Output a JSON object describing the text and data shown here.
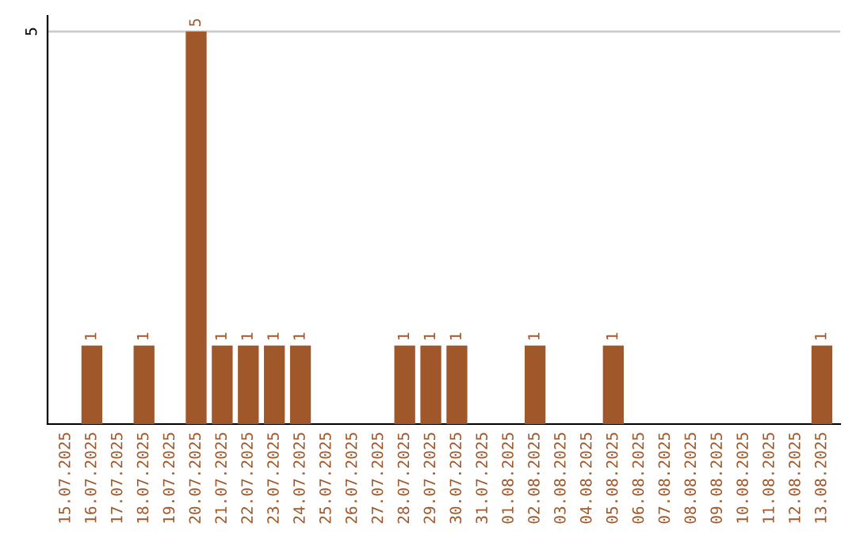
{
  "chart_data": {
    "type": "bar",
    "categories": [
      "15.07.2025",
      "16.07.2025",
      "17.07.2025",
      "18.07.2025",
      "19.07.2025",
      "20.07.2025",
      "21.07.2025",
      "22.07.2025",
      "23.07.2025",
      "24.07.2025",
      "25.07.2025",
      "26.07.2025",
      "27.07.2025",
      "28.07.2025",
      "29.07.2025",
      "30.07.2025",
      "31.07.2025",
      "01.08.2025",
      "02.08.2025",
      "03.08.2025",
      "04.08.2025",
      "05.08.2025",
      "06.08.2025",
      "07.08.2025",
      "08.08.2025",
      "09.08.2025",
      "10.08.2025",
      "11.08.2025",
      "12.08.2025",
      "13.08.2025"
    ],
    "values": [
      0,
      1,
      0,
      1,
      0,
      5,
      1,
      1,
      1,
      1,
      0,
      0,
      0,
      1,
      1,
      1,
      0,
      0,
      1,
      0,
      0,
      1,
      0,
      0,
      0,
      0,
      0,
      0,
      0,
      1
    ],
    "value_labels": [
      null,
      "1",
      null,
      "1",
      null,
      "5",
      "1",
      "1",
      "1",
      "1",
      null,
      null,
      null,
      "1",
      "1",
      "1",
      null,
      null,
      "1",
      null,
      null,
      "1",
      null,
      null,
      null,
      null,
      null,
      null,
      null,
      "1"
    ],
    "color": "#a0582a",
    "ylim": [
      0,
      5.2
    ],
    "yticks": [
      5
    ],
    "grid": "y",
    "legend": false
  }
}
